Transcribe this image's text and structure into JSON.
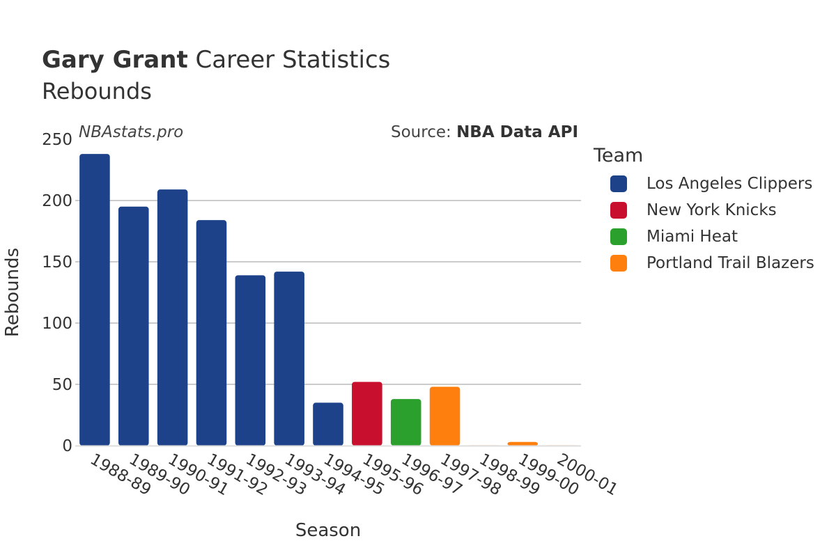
{
  "header": {
    "title_bold": "Gary Grant",
    "title_rest": " Career Statistics",
    "subtitle": "Rebounds"
  },
  "watermark": "NBAstats.pro",
  "source": {
    "prefix": "Source: ",
    "name": "NBA Data API"
  },
  "legend": {
    "title": "Team",
    "items": [
      {
        "label": "Los Angeles Clippers",
        "color": "#1d428a"
      },
      {
        "label": "New York Knicks",
        "color": "#c8102e"
      },
      {
        "label": "Miami Heat",
        "color": "#2ca02c"
      },
      {
        "label": "Portland Trail Blazers",
        "color": "#ff7f0e"
      }
    ]
  },
  "chart_data": {
    "type": "bar",
    "title": "Gary Grant Career Statistics",
    "subtitle": "Rebounds",
    "xlabel": "Season",
    "ylabel": "Rebounds",
    "ylim": [
      0,
      250
    ],
    "yticks": [
      0,
      50,
      100,
      150,
      200,
      250
    ],
    "grid": true,
    "legend_position": "right",
    "categories": [
      "1988-89",
      "1989-90",
      "1990-91",
      "1991-92",
      "1992-93",
      "1993-94",
      "1994-95",
      "1995-96",
      "1996-97",
      "1997-98",
      "1998-99",
      "1999-00",
      "2000-01"
    ],
    "values": [
      238,
      195,
      209,
      184,
      139,
      142,
      35,
      52,
      38,
      48,
      0,
      3,
      0
    ],
    "teams": [
      "Los Angeles Clippers",
      "Los Angeles Clippers",
      "Los Angeles Clippers",
      "Los Angeles Clippers",
      "Los Angeles Clippers",
      "Los Angeles Clippers",
      "Los Angeles Clippers",
      "New York Knicks",
      "Miami Heat",
      "Portland Trail Blazers",
      "Portland Trail Blazers",
      "Portland Trail Blazers",
      "Portland Trail Blazers"
    ]
  }
}
